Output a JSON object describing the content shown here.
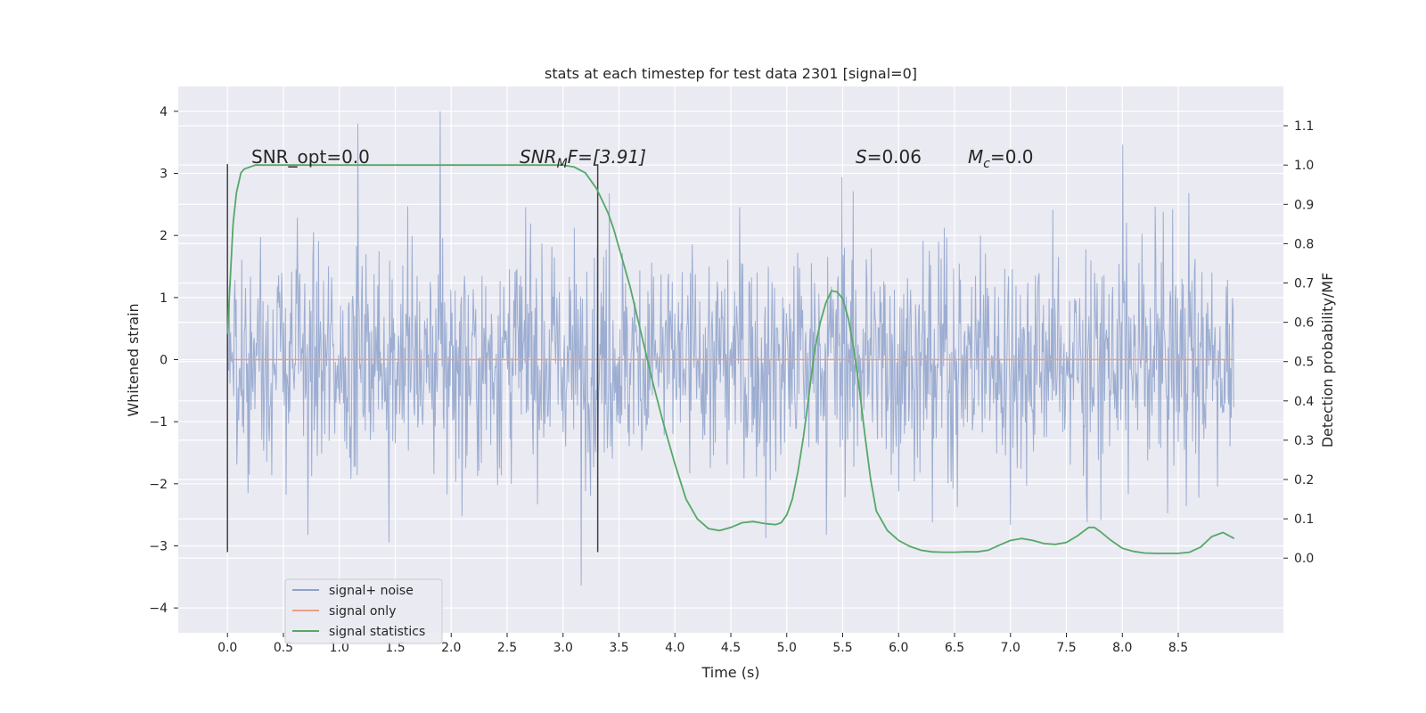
{
  "chart_data": {
    "type": "line",
    "title": "stats at each timestep for test data 2301 [signal=0]",
    "xlabel": "Time (s)",
    "ylabel": "Whitened strain",
    "y2label": "Detection probability/MF",
    "xlim": [
      -0.44,
      9.44
    ],
    "ylim": [
      -4.4,
      4.4
    ],
    "y2lim": [
      -0.19,
      1.2
    ],
    "x_ticks": [
      "0.0",
      "0.5",
      "1.0",
      "1.5",
      "2.0",
      "2.5",
      "3.0",
      "3.5",
      "4.0",
      "4.5",
      "5.0",
      "5.5",
      "6.0",
      "6.5",
      "7.0",
      "7.5",
      "8.0",
      "8.5"
    ],
    "y_ticks": [
      "−4",
      "−3",
      "−2",
      "−1",
      "0",
      "1",
      "2",
      "3",
      "4"
    ],
    "y2_ticks": [
      "0.0",
      "0.1",
      "0.2",
      "0.3",
      "0.4",
      "0.5",
      "0.6",
      "0.7",
      "0.8",
      "0.9",
      "1.0",
      "1.1"
    ],
    "grid": true,
    "legend_position": "bottom-left",
    "annotations": {
      "snr_opt": "SNR_opt=0.0",
      "snr_mf_name": "SNR",
      "snr_mf_sub": "M",
      "snr_mf_tail": "F=[3.91]",
      "s_name": "S",
      "s_value": "=0.06",
      "mc_name": "M",
      "mc_sub": "c",
      "mc_value": "=0.0"
    },
    "vertical_markers": [
      {
        "x": 0.0,
        "y_range": [
          -3.1,
          3.15
        ]
      },
      {
        "x": 3.31,
        "y_range": [
          -3.1,
          3.15
        ]
      }
    ],
    "series": [
      {
        "name": "signal+ noise",
        "color": "#8ea2cb",
        "axis": "left",
        "style": "dense noise",
        "x_range": [
          0.0,
          9.0
        ],
        "typical_amplitude": 2.2,
        "peak_amplitude": 4.0
      },
      {
        "name": "signal only",
        "color": "#e8a087",
        "axis": "left",
        "values_flat": 0.0,
        "x_range": [
          0.0,
          9.0
        ]
      },
      {
        "name": "signal statistics",
        "color": "#55a868",
        "axis": "right",
        "x": [
          0.0,
          0.05,
          0.08,
          0.12,
          0.15,
          0.25,
          0.5,
          1.0,
          1.5,
          2.0,
          2.5,
          3.0,
          3.1,
          3.2,
          3.3,
          3.35,
          3.4,
          3.45,
          3.5,
          3.55,
          3.6,
          3.7,
          3.8,
          3.9,
          4.0,
          4.1,
          4.2,
          4.3,
          4.4,
          4.5,
          4.6,
          4.7,
          4.8,
          4.9,
          4.95,
          5.0,
          5.05,
          5.1,
          5.15,
          5.2,
          5.25,
          5.3,
          5.35,
          5.4,
          5.45,
          5.5,
          5.55,
          5.6,
          5.65,
          5.7,
          5.75,
          5.8,
          5.9,
          6.0,
          6.1,
          6.2,
          6.3,
          6.4,
          6.5,
          6.6,
          6.7,
          6.8,
          6.9,
          7.0,
          7.1,
          7.2,
          7.3,
          7.4,
          7.5,
          7.6,
          7.7,
          7.75,
          7.8,
          7.9,
          8.0,
          8.1,
          8.2,
          8.3,
          8.4,
          8.5,
          8.6,
          8.7,
          8.8,
          8.9,
          9.0
        ],
        "values": [
          0.57,
          0.85,
          0.93,
          0.98,
          0.99,
          1.0,
          1.0,
          1.0,
          1.0,
          1.0,
          1.0,
          1.0,
          0.995,
          0.98,
          0.94,
          0.91,
          0.88,
          0.84,
          0.79,
          0.74,
          0.69,
          0.57,
          0.45,
          0.34,
          0.24,
          0.15,
          0.1,
          0.075,
          0.07,
          0.078,
          0.09,
          0.093,
          0.088,
          0.085,
          0.09,
          0.11,
          0.15,
          0.22,
          0.31,
          0.42,
          0.53,
          0.6,
          0.65,
          0.68,
          0.677,
          0.66,
          0.61,
          0.53,
          0.43,
          0.31,
          0.2,
          0.12,
          0.07,
          0.045,
          0.03,
          0.02,
          0.016,
          0.015,
          0.015,
          0.016,
          0.016,
          0.02,
          0.033,
          0.045,
          0.05,
          0.045,
          0.037,
          0.035,
          0.04,
          0.057,
          0.078,
          0.078,
          0.068,
          0.045,
          0.025,
          0.017,
          0.013,
          0.012,
          0.012,
          0.012,
          0.015,
          0.028,
          0.055,
          0.065,
          0.05
        ]
      }
    ]
  }
}
